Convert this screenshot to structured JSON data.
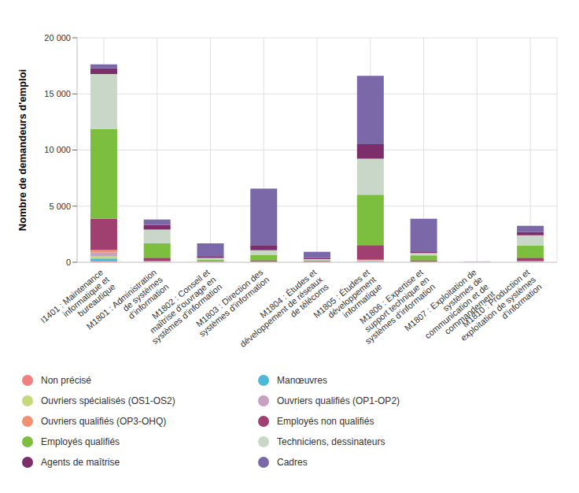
{
  "chart_data": {
    "type": "bar",
    "stacked": true,
    "grid": true,
    "legend": "bottom",
    "y_label": "Nombre de demandeurs d'emploi",
    "categories": [
      "I1401 : Maintenance informatique et bureautique",
      "M1801 : Administration de systèmes d'information",
      "M1802 : Conseil et maîtrise d'ouvrage en systèmes d'information",
      "M1803 : Direction des systèmes d'information",
      "M1804 : Études et développement de réseaux de télécoms",
      "M1805 : Études et développement informatique",
      "M1806 : Expertise et support technique en systèmes d'information",
      "M1807 : Exploitation de systèmes de communication et de commandement",
      "M1810 : Production et exploitation de systèmes d'information"
    ],
    "ylim": [
      0,
      20000
    ],
    "yticks": [
      0,
      {
        "value": 5000,
        "label": "5 000"
      },
      {
        "value": 10000,
        "label": "10 000"
      },
      {
        "value": 15000,
        "label": "15 000"
      },
      {
        "value": 20000,
        "label": "20 000"
      }
    ],
    "series": [
      {
        "name": "Non précisé",
        "color": "#f08080",
        "values": [
          80,
          10,
          5,
          10,
          5,
          30,
          10,
          0,
          10
        ]
      },
      {
        "name": "Manœuvres",
        "color": "#4db8d8",
        "values": [
          250,
          20,
          5,
          10,
          5,
          40,
          10,
          0,
          20
        ]
      },
      {
        "name": "Ouvriers spécialisés (OS1-OS2)",
        "color": "#c5d87a",
        "values": [
          200,
          20,
          5,
          10,
          5,
          40,
          10,
          0,
          20
        ]
      },
      {
        "name": "Ouvriers qualifiés (OP1-OP2)",
        "color": "#c8a0c0",
        "values": [
          350,
          30,
          10,
          20,
          10,
          60,
          20,
          0,
          30
        ]
      },
      {
        "name": "Ouvriers qualifiés (OP3-OHQ)",
        "color": "#f09070",
        "values": [
          200,
          30,
          10,
          20,
          10,
          50,
          20,
          0,
          20
        ]
      },
      {
        "name": "Employés non qualifiés",
        "color": "#a04070",
        "values": [
          2800,
          300,
          50,
          100,
          40,
          1300,
          100,
          0,
          300
        ]
      },
      {
        "name": "Employés qualifiés",
        "color": "#7cbf3e",
        "values": [
          8000,
          1300,
          150,
          500,
          100,
          4500,
          450,
          0,
          1100
        ]
      },
      {
        "name": "Techniciens, dessinateurs",
        "color": "#c9d7c9",
        "values": [
          4900,
          1200,
          150,
          400,
          100,
          3200,
          200,
          0,
          900
        ]
      },
      {
        "name": "Agents de maîtrise",
        "color": "#7d2e6a",
        "values": [
          500,
          400,
          100,
          400,
          100,
          1300,
          150,
          10,
          300
        ]
      },
      {
        "name": "Cadres",
        "color": "#7b68a8",
        "values": [
          350,
          500,
          1200,
          5100,
          550,
          6100,
          2900,
          30,
          550
        ]
      }
    ]
  }
}
